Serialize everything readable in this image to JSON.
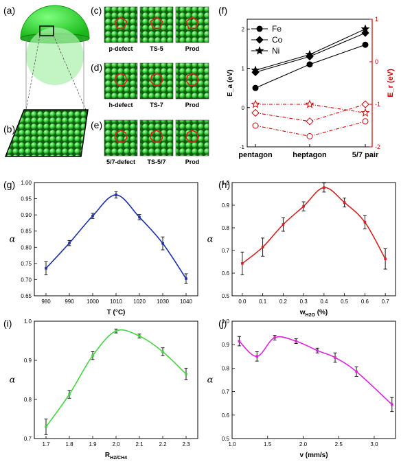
{
  "panel_labels": {
    "a": "(a)",
    "b": "(b)",
    "c": "(c)",
    "d": "(d)",
    "e": "(e)",
    "f": "(f)",
    "g": "(g)",
    "h": "(h)",
    "i": "(i)",
    "j": "(j)"
  },
  "snapshots": {
    "c": [
      "p-defect",
      "TS-5",
      "Prod"
    ],
    "d": [
      "h-defect",
      "TS-7",
      "Prod"
    ],
    "e": [
      "5/7-defect",
      "TS-5/7",
      "Prod"
    ]
  },
  "colors": {
    "sphere": "#33cc33",
    "atoms": "#2aa82a",
    "defect": "#e02020",
    "red_axis": "#cc0000",
    "g_line": "#1a2faa",
    "h_line": "#d42020",
    "i_line": "#44d444",
    "j_line": "#dd22dd"
  },
  "chart_data": [
    {
      "panel": "f",
      "type": "line",
      "categories": [
        "pentagon",
        "heptagon",
        "5/7 pair"
      ],
      "left_axis": {
        "label": "E_a (eV)",
        "ylim": [
          -1,
          2.25
        ],
        "ticks": [
          -1,
          0,
          1,
          2
        ]
      },
      "right_axis": {
        "label": "E_r (eV)",
        "ylim": [
          -2,
          1
        ],
        "ticks": [
          -2,
          -1,
          0,
          1
        ]
      },
      "legend": [
        "Fe",
        "Co",
        "Ni"
      ],
      "series": [
        {
          "name": "Fe",
          "axis": "left",
          "marker": "circle-half",
          "values": [
            0.5,
            1.1,
            1.6
          ]
        },
        {
          "name": "Co",
          "axis": "left",
          "marker": "diamond",
          "values": [
            0.9,
            1.3,
            1.9
          ]
        },
        {
          "name": "Ni",
          "axis": "left",
          "marker": "star",
          "values": [
            0.95,
            1.35,
            2.0
          ]
        },
        {
          "name": "Fe",
          "axis": "right",
          "marker": "circle-open",
          "values": [
            -1.5,
            -1.75,
            -1.4
          ]
        },
        {
          "name": "Co",
          "axis": "right",
          "marker": "diamond-open",
          "values": [
            -1.2,
            -1.4,
            -1.0
          ]
        },
        {
          "name": "Ni",
          "axis": "right",
          "marker": "star-open",
          "values": [
            -1.0,
            -1.0,
            -1.2
          ]
        }
      ]
    },
    {
      "panel": "g",
      "type": "line",
      "xlabel": "T (°C)",
      "ylabel": "α",
      "xlim": [
        975,
        1045
      ],
      "ylim": [
        0.65,
        1.0
      ],
      "xticks": [
        980,
        990,
        1000,
        1010,
        1020,
        1030,
        1040
      ],
      "yticks": [
        0.65,
        0.7,
        0.75,
        0.8,
        0.85,
        0.9,
        0.95,
        1.0
      ],
      "ytick_decimals": 2,
      "x": [
        980,
        990,
        1000,
        1010,
        1020,
        1030,
        1040
      ],
      "y": [
        0.735,
        0.813,
        0.897,
        0.962,
        0.893,
        0.812,
        0.703
      ],
      "err": [
        0.02,
        0.008,
        0.008,
        0.01,
        0.008,
        0.02,
        0.015
      ]
    },
    {
      "panel": "h",
      "type": "line",
      "xlabel": "w",
      "xlabel_sub": "H2O",
      "xlabel_suffix": " (%)",
      "ylabel": "α",
      "xlim": [
        -0.05,
        0.75
      ],
      "ylim": [
        0.5,
        1.0
      ],
      "xticks": [
        0.0,
        0.1,
        0.2,
        0.3,
        0.4,
        0.5,
        0.6,
        0.7
      ],
      "yticks": [
        0.5,
        0.6,
        0.7,
        0.8,
        0.9,
        1.0
      ],
      "xtick_decimals": 1,
      "ytick_decimals": 1,
      "x": [
        0.0,
        0.1,
        0.2,
        0.3,
        0.4,
        0.5,
        0.6,
        0.7
      ],
      "y": [
        0.643,
        0.715,
        0.815,
        0.895,
        0.978,
        0.912,
        0.825,
        0.663
      ],
      "err": [
        0.05,
        0.04,
        0.03,
        0.02,
        0.02,
        0.02,
        0.03,
        0.045
      ]
    },
    {
      "panel": "i",
      "type": "line",
      "xlabel": "R",
      "xlabel_sub": "H2/CH4",
      "xlabel_suffix": "",
      "ylabel": "α",
      "xlim": [
        1.65,
        2.35
      ],
      "ylim": [
        0.7,
        1.0
      ],
      "xticks": [
        1.7,
        1.8,
        1.9,
        2.0,
        2.1,
        2.2,
        2.3
      ],
      "yticks": [
        0.7,
        0.8,
        0.9,
        1.0
      ],
      "xtick_decimals": 1,
      "ytick_decimals": 1,
      "x": [
        1.7,
        1.8,
        1.9,
        2.0,
        2.1,
        2.2,
        2.3
      ],
      "y": [
        0.73,
        0.813,
        0.912,
        0.975,
        0.962,
        0.922,
        0.865
      ],
      "err": [
        0.02,
        0.01,
        0.01,
        0.005,
        0.005,
        0.01,
        0.015
      ]
    },
    {
      "panel": "j",
      "type": "line",
      "xlabel": "v (mm/s)",
      "ylabel": "α",
      "xlim": [
        1.0,
        3.3
      ],
      "ylim": [
        0.5,
        1.0
      ],
      "xticks": [
        1.0,
        1.5,
        2.0,
        2.5,
        3.0
      ],
      "yticks": [
        0.5,
        0.6,
        0.7,
        0.8,
        0.9,
        1.0
      ],
      "xtick_decimals": 1,
      "ytick_decimals": 1,
      "x": [
        1.1,
        1.35,
        1.6,
        1.9,
        2.2,
        2.45,
        2.75,
        3.25
      ],
      "y": [
        0.915,
        0.85,
        0.93,
        0.915,
        0.875,
        0.845,
        0.785,
        0.645
      ],
      "err": [
        0.02,
        0.02,
        0.01,
        0.01,
        0.01,
        0.02,
        0.02,
        0.03
      ]
    }
  ]
}
